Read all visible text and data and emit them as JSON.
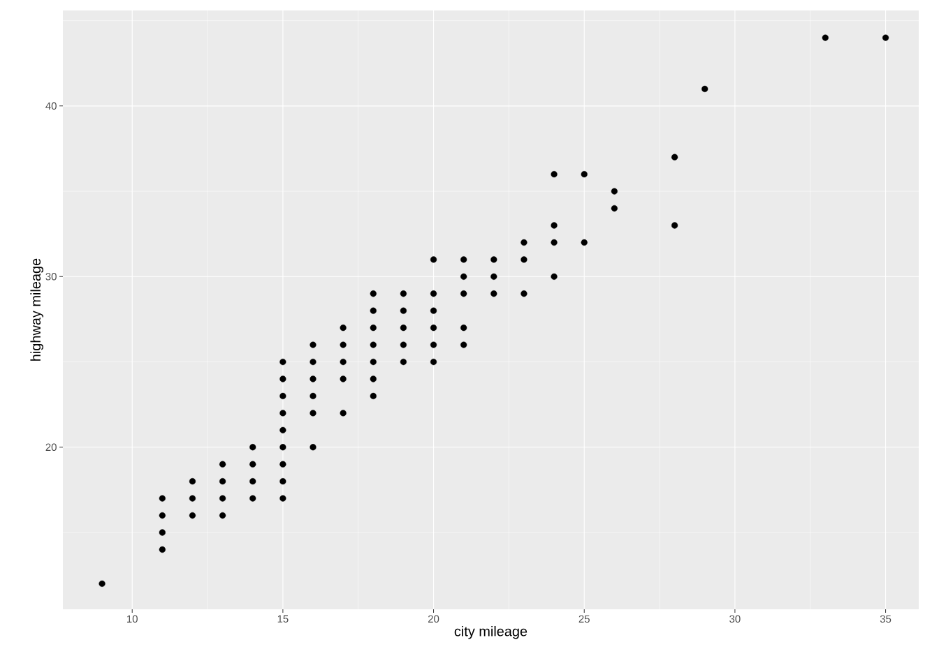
{
  "chart_data": {
    "type": "scatter",
    "xlabel": "city mileage",
    "ylabel": "highway mileage",
    "x": [
      9,
      11,
      11,
      11,
      11,
      12,
      12,
      12,
      13,
      13,
      13,
      13,
      14,
      14,
      14,
      14,
      15,
      15,
      15,
      15,
      15,
      15,
      15,
      15,
      15,
      16,
      16,
      16,
      16,
      16,
      16,
      17,
      17,
      17,
      17,
      17,
      18,
      18,
      18,
      18,
      18,
      18,
      18,
      19,
      19,
      19,
      19,
      19,
      20,
      20,
      20,
      20,
      20,
      20,
      21,
      21,
      21,
      21,
      21,
      22,
      22,
      22,
      23,
      23,
      23,
      24,
      24,
      24,
      24,
      25,
      25,
      26,
      26,
      28,
      28,
      29,
      33,
      35
    ],
    "values": [
      12,
      17,
      16,
      15,
      14,
      18,
      17,
      16,
      19,
      18,
      17,
      16,
      20,
      19,
      18,
      17,
      25,
      24,
      23,
      22,
      21,
      20,
      19,
      18,
      17,
      26,
      25,
      24,
      23,
      22,
      20,
      27,
      26,
      25,
      24,
      22,
      29,
      28,
      27,
      26,
      25,
      24,
      23,
      29,
      28,
      27,
      26,
      25,
      31,
      29,
      28,
      27,
      26,
      25,
      31,
      30,
      29,
      27,
      26,
      31,
      30,
      29,
      32,
      31,
      29,
      36,
      33,
      32,
      30,
      36,
      32,
      35,
      34,
      37,
      33,
      41,
      44,
      44
    ],
    "color": "#000000",
    "marker": "circle",
    "grid": true,
    "xlim": [
      7.7,
      36.1
    ],
    "ylim": [
      10.5,
      45.6
    ],
    "xticks": [
      10,
      15,
      20,
      25,
      30,
      35
    ],
    "yticks": [
      20,
      30,
      40
    ]
  }
}
